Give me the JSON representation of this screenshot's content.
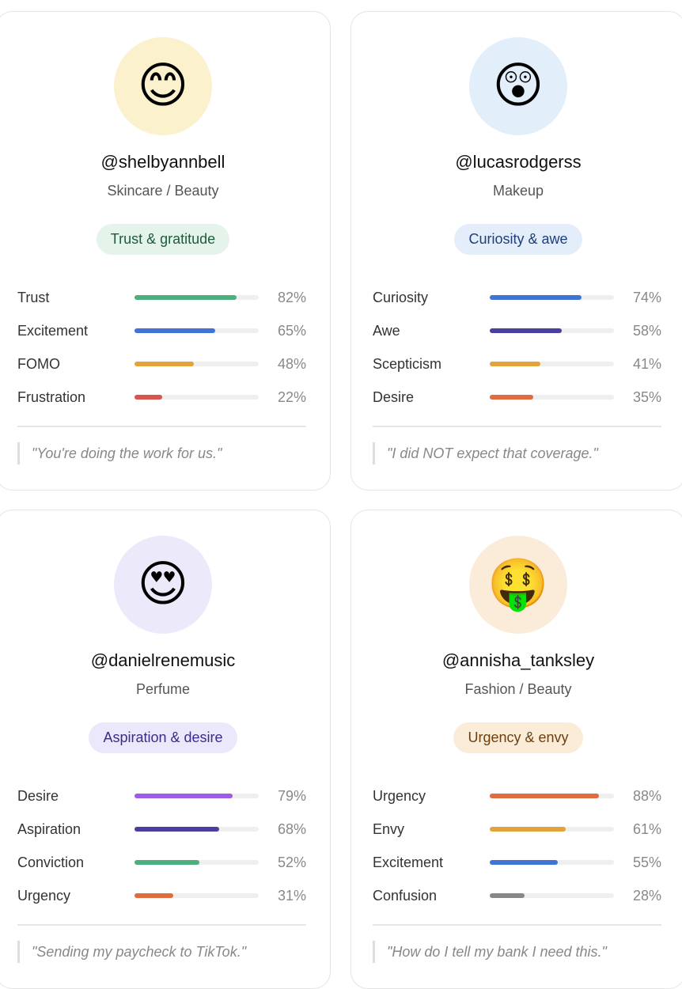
{
  "cards": [
    {
      "emoji": "😊",
      "avatar_color": "#fbf1cd",
      "handle": "@shelbyannbell",
      "category": "Skincare / Beauty",
      "tag": "Trust & gratitude",
      "tag_color": "#e4f4eb",
      "tag_text_color": "#1f5a3a",
      "emotions": [
        {
          "name": "Trust",
          "value": 82,
          "label": "82%",
          "color": "#4caf7d"
        },
        {
          "name": "Excitement",
          "value": 65,
          "label": "65%",
          "color": "#3f74d6"
        },
        {
          "name": "FOMO",
          "value": 48,
          "label": "48%",
          "color": "#e0a43a"
        },
        {
          "name": "Frustration",
          "value": 22,
          "label": "22%",
          "color": "#d9534f"
        }
      ],
      "quote": "\"You're doing the work for us.\""
    },
    {
      "emoji": "😲",
      "avatar_color": "#e2effb",
      "handle": "@lucasrodgerss",
      "category": "Makeup",
      "tag": "Curiosity & awe",
      "tag_color": "#e3eefa",
      "tag_text_color": "#1f3f7a",
      "emotions": [
        {
          "name": "Curiosity",
          "value": 74,
          "label": "74%",
          "color": "#3f74d6"
        },
        {
          "name": "Awe",
          "value": 58,
          "label": "58%",
          "color": "#4a3fa0"
        },
        {
          "name": "Scepticism",
          "value": 41,
          "label": "41%",
          "color": "#e0a43a"
        },
        {
          "name": "Desire",
          "value": 35,
          "label": "35%",
          "color": "#e06b3f"
        }
      ],
      "quote": "\"I did NOT expect that coverage.\""
    },
    {
      "emoji": "😍",
      "avatar_color": "#ece9fb",
      "handle": "@danielrenemusic",
      "category": "Perfume",
      "tag": "Aspiration & desire",
      "tag_color": "#ebe8fb",
      "tag_text_color": "#3b2c8a",
      "emotions": [
        {
          "name": "Desire",
          "value": 79,
          "label": "79%",
          "color": "#9b5de5"
        },
        {
          "name": "Aspiration",
          "value": 68,
          "label": "68%",
          "color": "#4a3fa0"
        },
        {
          "name": "Conviction",
          "value": 52,
          "label": "52%",
          "color": "#4caf7d"
        },
        {
          "name": "Urgency",
          "value": 31,
          "label": "31%",
          "color": "#e06b3f"
        }
      ],
      "quote": "\"Sending my paycheck to TikTok.\""
    },
    {
      "emoji": "🤑",
      "avatar_color": "#fbecd9",
      "handle": "@annisha_tanksley",
      "category": "Fashion / Beauty",
      "tag": "Urgency & envy",
      "tag_color": "#fbecd8",
      "tag_text_color": "#6b3f12",
      "emotions": [
        {
          "name": "Urgency",
          "value": 88,
          "label": "88%",
          "color": "#e06b3f"
        },
        {
          "name": "Envy",
          "value": 61,
          "label": "61%",
          "color": "#e0a43a"
        },
        {
          "name": "Excitement",
          "value": 55,
          "label": "55%",
          "color": "#3f74d6"
        },
        {
          "name": "Confusion",
          "value": 28,
          "label": "28%",
          "color": "#888888"
        }
      ],
      "quote": "\"How do I tell my bank I need this.\""
    }
  ]
}
